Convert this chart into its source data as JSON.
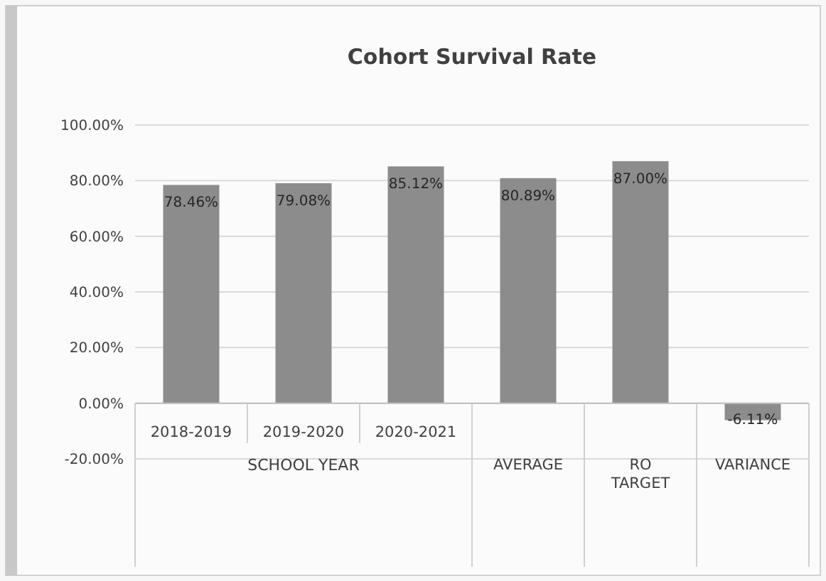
{
  "chart_data": {
    "type": "bar",
    "title": "Cohort Survival Rate",
    "xlabel": "SCHOOL YEAR",
    "categories": [
      "2018-2019",
      "2019-2020",
      "2020-2021",
      "AVERAGE",
      "RO TARGET",
      "VARIANCE"
    ],
    "values": [
      78.46,
      79.08,
      85.12,
      80.89,
      87.0,
      -6.11
    ],
    "value_labels": [
      "78.46%",
      "79.08%",
      "85.12%",
      "80.89%",
      "87.00%",
      "-6.11%"
    ],
    "color": "#8c8c8c",
    "ylim": [
      -20,
      100
    ],
    "yticks": [
      {
        "value": -20,
        "label": "-20.00%"
      },
      {
        "value": 0,
        "label": "0.00%"
      },
      {
        "value": 20,
        "label": "20.00%"
      },
      {
        "value": 40,
        "label": "40.00%"
      },
      {
        "value": 60,
        "label": "60.00%"
      },
      {
        "value": 80,
        "label": "80.00%"
      },
      {
        "value": 100,
        "label": "100.00%"
      }
    ],
    "grid": true
  }
}
